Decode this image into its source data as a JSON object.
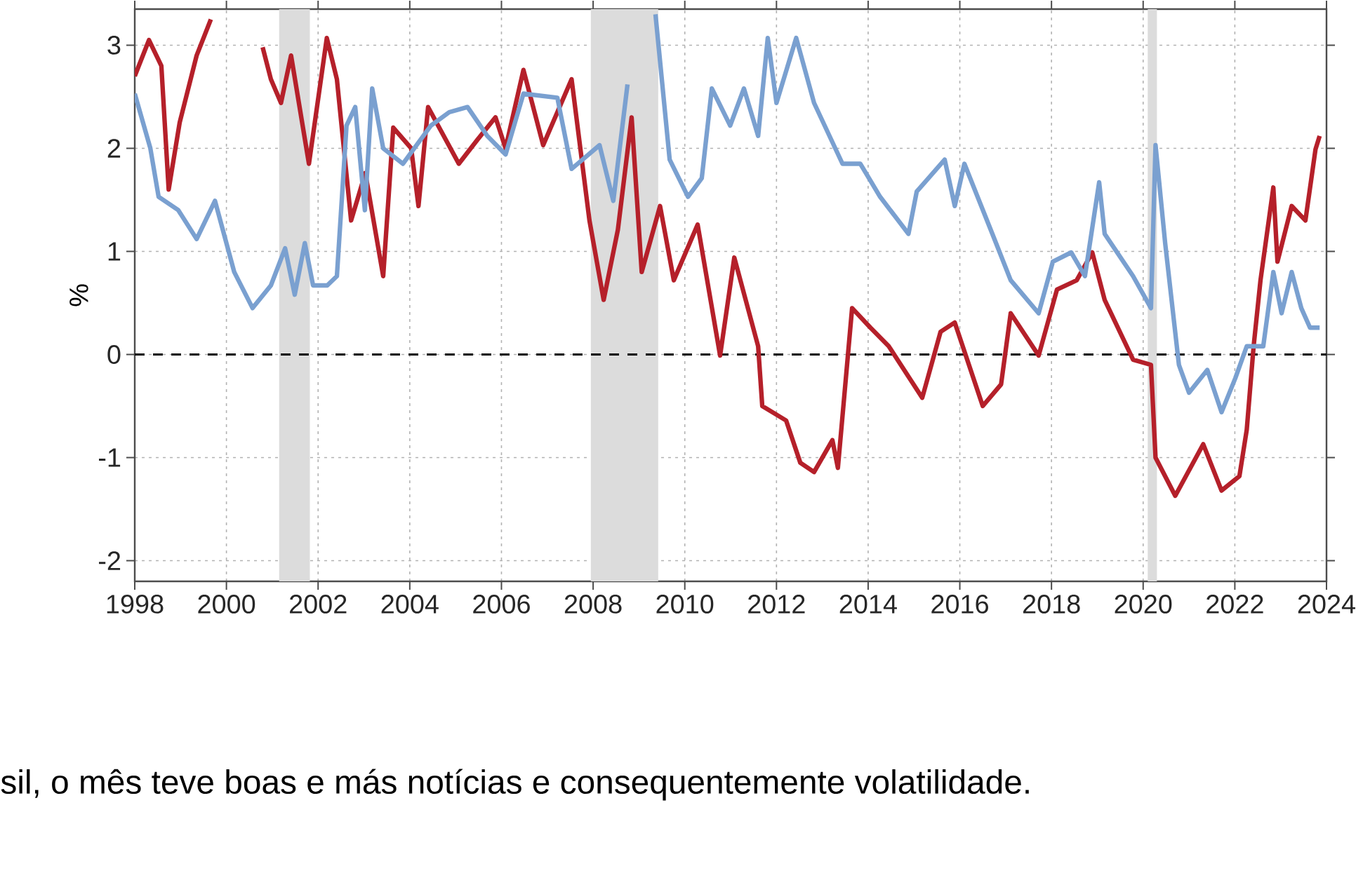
{
  "chart_data": {
    "type": "line",
    "ylabel": "%",
    "annotations": [
      "sil, o mês teve boas e más notícias e consequentemente volatilidade."
    ],
    "xlim": [
      1998,
      2024
    ],
    "ylim": [
      -2.2,
      3.35
    ],
    "xticks": [
      1998,
      2000,
      2002,
      2004,
      2006,
      2008,
      2010,
      2012,
      2014,
      2016,
      2018,
      2020,
      2022,
      2024
    ],
    "yticks": [
      -2,
      -1,
      0,
      1,
      2,
      3
    ],
    "grid": true,
    "ref_lines": [
      {
        "axis": "y",
        "value": 0,
        "color": "#000000",
        "line_style": "dashed"
      }
    ],
    "bands": [
      {
        "axis": "x",
        "from": 2001.15,
        "to": 2001.82,
        "color": "#dcdcdc"
      },
      {
        "axis": "x",
        "from": 2007.95,
        "to": 2009.42,
        "color": "#dcdcdc"
      },
      {
        "axis": "x",
        "from": 2020.1,
        "to": 2020.3,
        "color": "#dcdcdc"
      }
    ],
    "series": [
      {
        "color": "#b5202a",
        "x": [
          1998.0,
          1998.31,
          1998.58,
          1998.74,
          1998.98,
          1999.35,
          1999.66,
          2000.27,
          2000.66,
          2000.79,
          2000.97,
          2001.19,
          2001.41,
          2001.8,
          2002.19,
          2002.41,
          2002.72,
          2003.03,
          2003.42,
          2003.64,
          2004.03,
          2004.19,
          2004.4,
          2005.07,
          2005.47,
          2005.87,
          2006.09,
          2006.48,
          2006.91,
          2007.53,
          2007.92,
          2008.23,
          2008.54,
          2008.84,
          2009.06,
          2009.46,
          2009.76,
          2010.28,
          2010.77,
          2011.08,
          2011.6,
          2011.69,
          2012.21,
          2012.52,
          2012.82,
          2013.22,
          2013.34,
          2013.65,
          2014.05,
          2014.45,
          2015.18,
          2015.58,
          2015.89,
          2016.5,
          2016.9,
          2017.11,
          2017.72,
          2018.12,
          2018.55,
          2018.89,
          2019.16,
          2019.78,
          2020.17,
          2020.27,
          2020.7,
          2021.31,
          2021.71,
          2022.1,
          2022.26,
          2022.41,
          2022.56,
          2022.84,
          2022.93,
          2023.24,
          2023.54,
          2023.76,
          2023.85
        ],
        "values": [
          2.7,
          3.05,
          2.8,
          1.6,
          2.25,
          2.9,
          3.25,
          null,
          null,
          2.98,
          2.67,
          2.44,
          2.9,
          1.85,
          3.07,
          2.67,
          1.3,
          1.76,
          0.76,
          2.2,
          2.0,
          1.44,
          2.4,
          1.85,
          2.08,
          2.3,
          2.0,
          2.76,
          2.03,
          2.67,
          1.3,
          0.53,
          1.21,
          2.3,
          0.8,
          1.44,
          0.72,
          1.26,
          -0.01,
          0.94,
          0.08,
          -0.5,
          -0.64,
          -1.05,
          -1.14,
          -0.83,
          -1.1,
          0.45,
          0.26,
          0.08,
          -0.42,
          0.22,
          0.31,
          -0.5,
          -0.29,
          0.4,
          -0.01,
          0.63,
          0.72,
          0.99,
          0.53,
          -0.05,
          -0.1,
          -1.0,
          -1.37,
          -0.87,
          -1.32,
          -1.18,
          -0.73,
          0.08,
          0.72,
          1.62,
          0.9,
          1.44,
          1.3,
          1.99,
          2.12
        ]
      },
      {
        "color": "#7aa0d0",
        "x": [
          1998.0,
          1998.34,
          1998.52,
          1998.95,
          1999.35,
          1999.75,
          2000.17,
          2000.57,
          2000.97,
          2001.28,
          2001.49,
          2001.71,
          2001.89,
          2002.2,
          2002.41,
          2002.62,
          2002.81,
          2003.02,
          2003.18,
          2003.42,
          2003.85,
          2004.46,
          2004.86,
          2005.26,
          2005.69,
          2006.09,
          2006.48,
          2007.22,
          2007.53,
          2008.14,
          2008.44,
          2008.75,
          2009.06,
          2009.36,
          2009.67,
          2010.07,
          2010.37,
          2010.59,
          2010.99,
          2011.29,
          2011.6,
          2011.81,
          2012.0,
          2012.43,
          2012.82,
          2013.44,
          2013.83,
          2014.26,
          2014.88,
          2015.06,
          2015.67,
          2015.89,
          2016.1,
          2016.71,
          2017.11,
          2017.72,
          2018.03,
          2018.43,
          2018.73,
          2019.04,
          2019.16,
          2019.78,
          2020.17,
          2020.27,
          2020.48,
          2020.78,
          2021.0,
          2021.4,
          2021.71,
          2022.01,
          2022.26,
          2022.62,
          2022.84,
          2023.02,
          2023.24,
          2023.45,
          2023.64,
          2023.85
        ],
        "values": [
          2.53,
          2.0,
          1.53,
          1.4,
          1.12,
          1.49,
          0.8,
          0.45,
          0.67,
          1.03,
          0.58,
          1.08,
          0.67,
          0.67,
          0.76,
          2.22,
          2.4,
          1.4,
          2.58,
          2.0,
          1.85,
          2.22,
          2.35,
          2.4,
          2.12,
          1.94,
          2.53,
          2.49,
          1.8,
          2.03,
          1.49,
          2.62,
          null,
          3.3,
          1.89,
          1.53,
          1.71,
          2.58,
          2.22,
          2.58,
          2.12,
          3.07,
          2.44,
          3.07,
          2.44,
          1.85,
          1.85,
          1.53,
          1.17,
          1.58,
          1.89,
          1.44,
          1.85,
          1.17,
          0.72,
          0.4,
          0.9,
          0.99,
          0.76,
          1.67,
          1.17,
          0.76,
          0.45,
          2.03,
          1.08,
          -0.1,
          -0.37,
          -0.15,
          -0.56,
          -0.23,
          0.08,
          0.08,
          0.8,
          0.4,
          0.8,
          0.45,
          0.26,
          0.26
        ]
      }
    ]
  }
}
